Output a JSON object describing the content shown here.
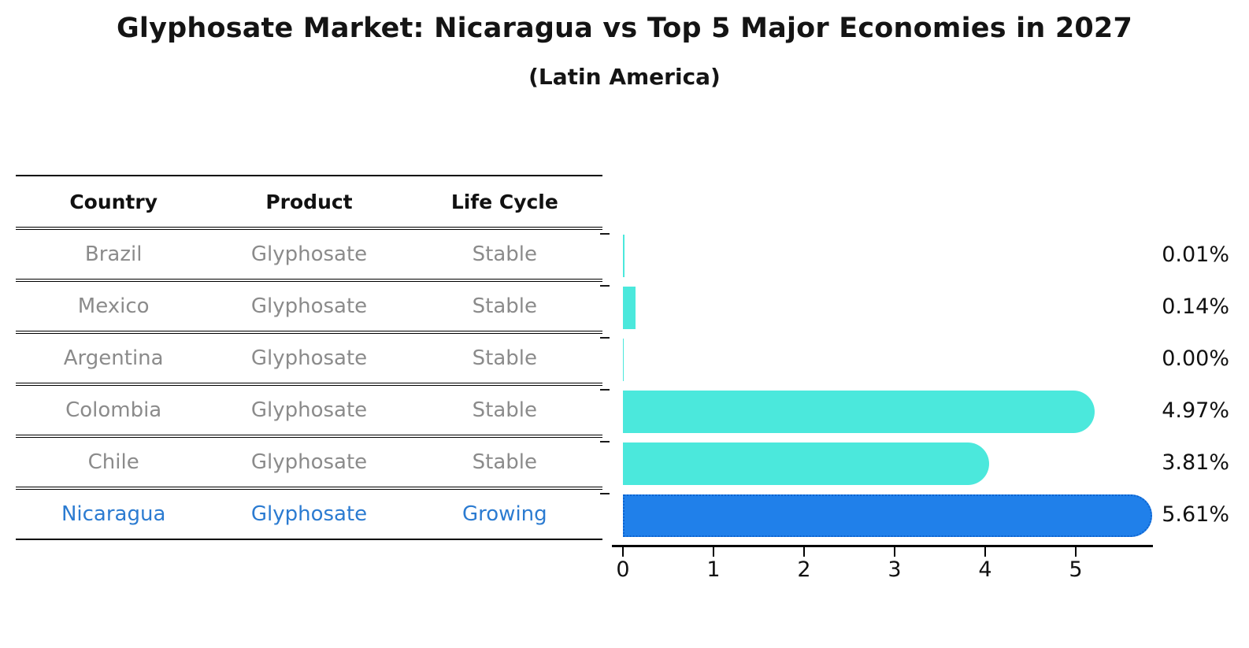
{
  "title": "Glyphosate Market: Nicaragua vs Top 5 Major Economies in 2027",
  "subtitle": "(Latin America)",
  "table": {
    "headers": [
      "Country",
      "Product",
      "Life Cycle"
    ],
    "rows": [
      {
        "country": "Brazil",
        "product": "Glyphosate",
        "life_cycle": "Stable",
        "highlight": false
      },
      {
        "country": "Mexico",
        "product": "Glyphosate",
        "life_cycle": "Stable",
        "highlight": false
      },
      {
        "country": "Argentina",
        "product": "Glyphosate",
        "life_cycle": "Stable",
        "highlight": false
      },
      {
        "country": "Colombia",
        "product": "Glyphosate",
        "life_cycle": "Stable",
        "highlight": false
      },
      {
        "country": "Chile",
        "product": "Glyphosate",
        "life_cycle": "Stable",
        "highlight": false
      },
      {
        "country": "Nicaragua",
        "product": "Glyphosate",
        "life_cycle": "Growing",
        "highlight": true
      }
    ]
  },
  "chart_data": {
    "type": "bar",
    "orientation": "horizontal",
    "title": "Glyphosate Market: Nicaragua vs Top 5 Major Economies in 2027",
    "subtitle": "(Latin America)",
    "categories": [
      "Brazil",
      "Mexico",
      "Argentina",
      "Colombia",
      "Chile",
      "Nicaragua"
    ],
    "values": [
      0.01,
      0.14,
      0.0,
      4.97,
      3.81,
      5.61
    ],
    "value_labels": [
      "0.01%",
      "0.14%",
      "0.00%",
      "4.97%",
      "3.81%",
      "5.61%"
    ],
    "unit": "%",
    "xticks": [
      "0",
      "1",
      "2",
      "3",
      "4",
      "5"
    ],
    "xlim": [
      0,
      5.85
    ],
    "grid": false,
    "highlight_index": 5,
    "colors": {
      "bar": "#4BE8DC",
      "highlight_bar": "#2080EA",
      "highlight_border": "#0d63cf"
    }
  },
  "colors": {
    "background": "#ffffff",
    "title_text": "#141414",
    "table_header_text": "#111111",
    "table_body_text": "#8b8b8b",
    "highlight_text": "#2b7bd1",
    "axis": "#000000",
    "value_label_text": "#111111"
  }
}
